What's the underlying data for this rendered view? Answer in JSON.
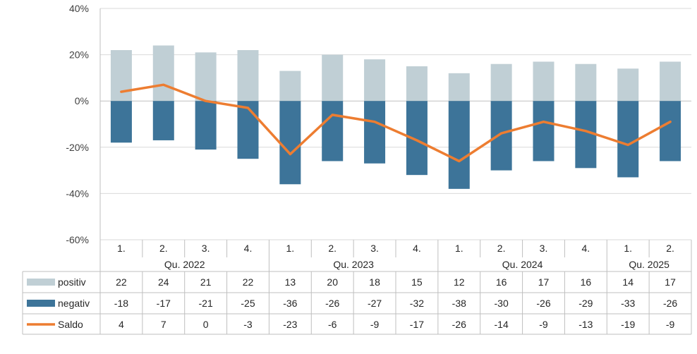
{
  "chart_data": {
    "type": "bar",
    "categories": [
      "1.",
      "2.",
      "3.",
      "4.",
      "1.",
      "2.",
      "3.",
      "4.",
      "1.",
      "2.",
      "3.",
      "4.",
      "1.",
      "2."
    ],
    "groups": [
      {
        "label": "Qu. 2022",
        "span": 4
      },
      {
        "label": "Qu. 2023",
        "span": 4
      },
      {
        "label": "Qu. 2024",
        "span": 4
      },
      {
        "label": "Qu. 2025",
        "span": 2
      }
    ],
    "series": [
      {
        "name": "positiv",
        "type": "bar",
        "color": "#c0cfd5",
        "values": [
          22,
          24,
          21,
          22,
          13,
          20,
          18,
          15,
          12,
          16,
          17,
          16,
          14,
          17
        ]
      },
      {
        "name": "negativ",
        "type": "bar",
        "color": "#3d7499",
        "values": [
          -18,
          -17,
          -21,
          -25,
          -36,
          -26,
          -27,
          -32,
          -38,
          -30,
          -26,
          -29,
          -33,
          -26
        ]
      },
      {
        "name": "Saldo",
        "type": "line",
        "color": "#ed7d31",
        "values": [
          4,
          7,
          0,
          -3,
          -23,
          -6,
          -9,
          -17,
          -26,
          -14,
          -9,
          -13,
          -19,
          -9
        ]
      }
    ],
    "ylim": [
      -60,
      40
    ],
    "yticks": [
      "40%",
      "20%",
      "0%",
      "-20%",
      "-40%",
      "-60%"
    ],
    "ytick_values": [
      40,
      20,
      0,
      -20,
      -40,
      -60
    ],
    "grid": true,
    "legend": "table-below"
  }
}
